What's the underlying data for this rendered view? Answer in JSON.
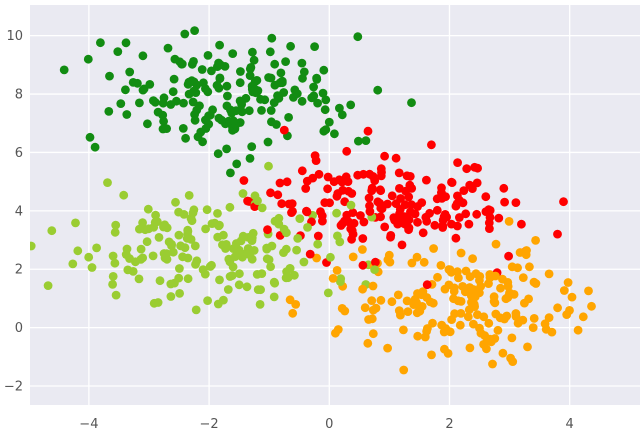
{
  "figure": {
    "background": "#ffffff",
    "plot_background": "#eaeaf2",
    "grid_color": "#ffffff",
    "tick_label_color": "#555555"
  },
  "chart_data": {
    "type": "scatter",
    "title": "",
    "xlabel": "",
    "ylabel": "",
    "legend": null,
    "grid": true,
    "grid_style": "major-white-on-light-lavender (seaborn darkgrid)",
    "xlim": [
      -4.98,
      5.17
    ],
    "ylim": [
      -2.65,
      11.05
    ],
    "xtick_values": [
      -4,
      -2,
      0,
      2,
      4
    ],
    "xtick_labels": [
      "−4",
      "−2",
      "0",
      "2",
      "4"
    ],
    "ytick_values": [
      -2,
      0,
      2,
      4,
      6,
      8,
      10
    ],
    "ytick_labels": [
      "−2",
      "0",
      "2",
      "4",
      "6",
      "8",
      "10"
    ],
    "marker": {
      "shape": "circle",
      "radius_px": 4.4
    },
    "seed": 20,
    "clusters": [
      {
        "name": "top-dark-green-blob",
        "color": "#128c12",
        "center": [
          -1.7,
          7.95
        ],
        "std": [
          1.0,
          0.95
        ],
        "count": 185,
        "approx_extent": {
          "x": [
            -3.9,
            0.8
          ],
          "y": [
            5.7,
            10.6
          ]
        }
      },
      {
        "name": "left-yellowgreen-blob",
        "color": "#9acd32",
        "center": [
          -1.85,
          2.65
        ],
        "std": [
          1.15,
          0.9
        ],
        "count": 185,
        "approx_extent": {
          "x": [
            -4.6,
            0.8
          ],
          "y": [
            0.3,
            5.0
          ]
        }
      },
      {
        "name": "middle-red-blob",
        "color": "#ff0000",
        "center": [
          1.1,
          4.2
        ],
        "std": [
          1.1,
          0.8
        ],
        "count": 185,
        "approx_extent": {
          "x": [
            -1.3,
            3.9
          ],
          "y": [
            2.3,
            6.5
          ]
        }
      },
      {
        "name": "bottom-right-orange-blob",
        "color": "#ffa500",
        "center": [
          2.0,
          0.75
        ],
        "std": [
          1.1,
          1.05
        ],
        "count": 185,
        "approx_extent": {
          "x": [
            -0.3,
            4.9
          ],
          "y": [
            -2.4,
            3.4
          ]
        }
      }
    ]
  }
}
